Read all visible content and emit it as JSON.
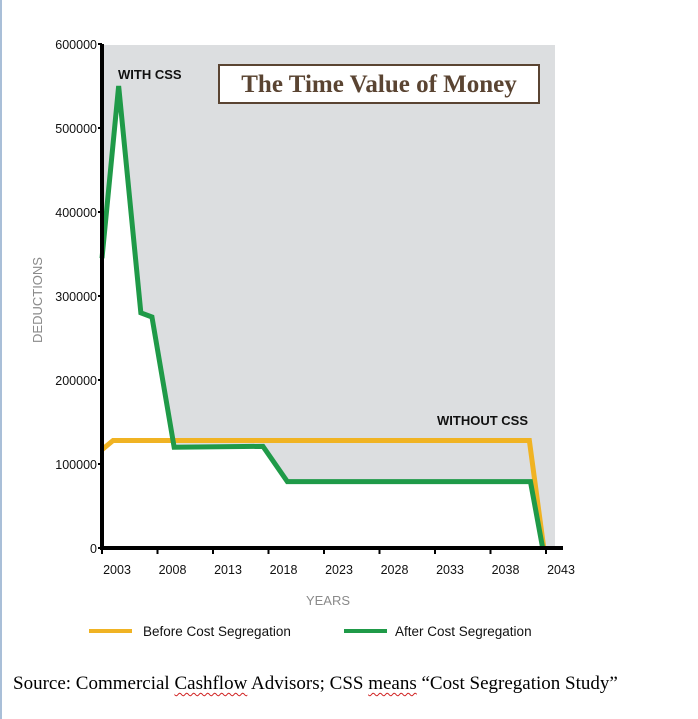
{
  "chart_data": {
    "type": "line",
    "title": "The Time Value of Money",
    "xlabel": "YEARS",
    "ylabel": "DEDUCTIONS",
    "xlim": [
      2003,
      2043
    ],
    "ylim": [
      0,
      600000
    ],
    "x_ticks": [
      "2003",
      "2008",
      "2013",
      "2018",
      "2023",
      "2028",
      "2033",
      "2038",
      "2043"
    ],
    "y_ticks": [
      "0",
      "100000",
      "200000",
      "300000",
      "400000",
      "500000",
      "600000"
    ],
    "annotations": {
      "with": "WITH CSS",
      "without": "WITHOUT CSS"
    },
    "legend_position": "bottom",
    "series": [
      {
        "name": "Before Cost Segregation",
        "color": "#f0b323",
        "points": [
          [
            2003,
            117000
          ],
          [
            2004,
            128000
          ],
          [
            2041.5,
            128000
          ],
          [
            2042.8,
            0
          ]
        ]
      },
      {
        "name": "After Cost Segregation",
        "color": "#1f9a48",
        "points": [
          [
            2003,
            345000
          ],
          [
            2004.5,
            550000
          ],
          [
            2006.5,
            280000
          ],
          [
            2007.5,
            275000
          ],
          [
            2009.5,
            120000
          ],
          [
            2017.5,
            121000
          ],
          [
            2019.7,
            79000
          ],
          [
            2041.6,
            79000
          ],
          [
            2042.7,
            0
          ]
        ]
      }
    ],
    "shading_color": "#dcdee0"
  },
  "source": {
    "parts": [
      "Source: Commercial ",
      "Cashflow",
      " Advisors; CSS ",
      "means",
      " “Cost Segregation Study”"
    ]
  }
}
